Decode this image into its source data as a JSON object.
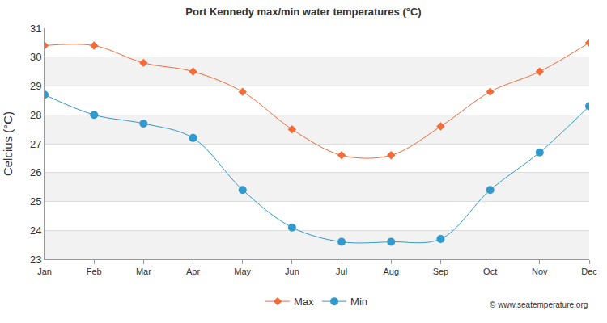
{
  "chart_data": {
    "type": "line",
    "title": "Port Kennedy max/min water temperatures (°C)",
    "y_label": "Celcius (°C)",
    "annotation": "© www.seatemperature.org",
    "categories": [
      "Jan",
      "Feb",
      "Mar",
      "Apr",
      "May",
      "Jun",
      "Jul",
      "Aug",
      "Sep",
      "Oct",
      "Nov",
      "Dec"
    ],
    "series": [
      {
        "name": "Max",
        "color": "#f26b3a",
        "marker": "diamond",
        "line_style": "solid",
        "values": [
          30.4,
          30.4,
          29.8,
          29.5,
          28.8,
          27.5,
          26.6,
          26.6,
          27.6,
          28.8,
          29.5,
          30.5
        ]
      },
      {
        "name": "Min",
        "color": "#3399cc",
        "marker": "circle",
        "line_style": "solid",
        "values": [
          28.7,
          28.0,
          27.7,
          27.2,
          25.4,
          24.1,
          23.6,
          23.6,
          23.7,
          25.4,
          26.7,
          28.3
        ]
      }
    ],
    "ylim": [
      23,
      31
    ],
    "yticks": [
      23,
      24,
      25,
      26,
      27,
      28,
      29,
      30,
      31
    ],
    "grid": true,
    "legend": "bottom"
  }
}
